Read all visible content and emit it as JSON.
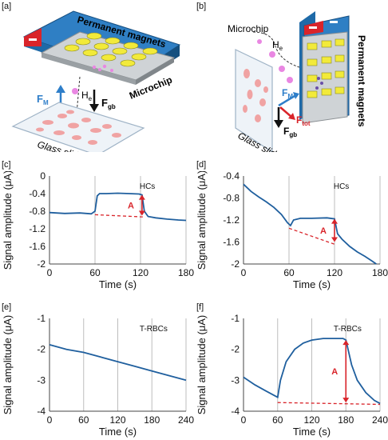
{
  "panels": {
    "a": {
      "label": "[a]",
      "magnets": "Permanent magnets",
      "microchip": "Microchip",
      "He": "H",
      "He_sub": "e",
      "FM": "F",
      "FM_sub": "M",
      "Fgb": "F",
      "Fgb_sub": "gb",
      "glass": "Glass slide",
      "colors": {
        "magnet_top": "#2f7fc4",
        "magnet_side": "#1e6aa8",
        "red": "#d9242a",
        "chip": "#cfd3d6",
        "pad": "#f2ea3a",
        "cell": "#f0a3a3",
        "pink": "#e987e2"
      }
    },
    "b": {
      "label": "[b]",
      "magnets": "Permanent magnets",
      "microchip": "Microchip",
      "He": "H",
      "He_sub": "e",
      "FM": "F",
      "FM_sub": "M",
      "Fgb": "F",
      "Fgb_sub": "gb",
      "Ftot": "F",
      "Ftot_sub": "tot",
      "glass": "Glass slide"
    }
  },
  "chart_data": [
    {
      "panel": "[c]",
      "type": "line",
      "legend": "HCs",
      "ylabel": "Signal amplitude (μA)",
      "xlabel": "Time (s)",
      "xlim": [
        0,
        180
      ],
      "ylim": [
        -2,
        0
      ],
      "xticks": [
        0,
        60,
        120,
        180
      ],
      "yticks": [
        0,
        -0.4,
        -0.8,
        -1.2,
        -1.6,
        -2
      ],
      "ytick_labels": [
        "0",
        "-0.4",
        "-0.8",
        "-1.2",
        "-1.6",
        "-2"
      ],
      "series": [
        {
          "color": "#1f5f9e",
          "x": [
            0,
            20,
            40,
            55,
            60,
            63,
            66,
            75,
            90,
            105,
            118,
            122,
            125,
            130,
            140,
            155,
            170,
            180
          ],
          "y": [
            -0.83,
            -0.85,
            -0.84,
            -0.86,
            -0.8,
            -0.45,
            -0.4,
            -0.4,
            -0.39,
            -0.4,
            -0.41,
            -0.43,
            -0.8,
            -0.92,
            -0.95,
            -0.98,
            -1.0,
            -1.01
          ]
        }
      ],
      "baseline": {
        "x": [
          60,
          123
        ],
        "y": [
          -0.88,
          -0.93
        ]
      },
      "annotation": {
        "label": "A",
        "x": 122,
        "y_from": -0.43,
        "y_to": -0.9
      }
    },
    {
      "panel": "[d]",
      "type": "line",
      "legend": "HCs",
      "ylabel": "Signal amplitude (μA)",
      "xlabel": "Time (s)",
      "xlim": [
        0,
        180
      ],
      "ylim": [
        -2,
        -0.4
      ],
      "xticks": [
        0,
        60,
        120,
        180
      ],
      "yticks": [
        -0.4,
        -0.8,
        -1.2,
        -1.6,
        -2
      ],
      "ytick_labels": [
        "-0.4",
        "-0.8",
        "-1.2",
        "-1.6",
        "-2"
      ],
      "series": [
        {
          "color": "#1f5f9e",
          "x": [
            0,
            10,
            20,
            30,
            40,
            50,
            58,
            62,
            66,
            75,
            90,
            110,
            120,
            124,
            130,
            140,
            150,
            160,
            170,
            175
          ],
          "y": [
            -0.55,
            -0.68,
            -0.78,
            -0.87,
            -0.97,
            -1.1,
            -1.25,
            -1.3,
            -1.2,
            -1.17,
            -1.17,
            -1.16,
            -1.18,
            -1.45,
            -1.55,
            -1.68,
            -1.78,
            -1.86,
            -1.95,
            -2.0
          ]
        }
      ],
      "baseline": {
        "x": [
          60,
          122
        ],
        "y": [
          -1.35,
          -1.65
        ]
      },
      "annotation": {
        "label": "A",
        "x": 120,
        "y_from": -1.18,
        "y_to": -1.6
      }
    },
    {
      "panel": "[e]",
      "type": "line",
      "legend": "T-RBCs",
      "ylabel": "Signal amplitude (μA)",
      "xlabel": "Time (s)",
      "xlim": [
        0,
        240
      ],
      "ylim": [
        -4,
        -1
      ],
      "xticks": [
        0,
        60,
        120,
        180,
        240
      ],
      "yticks": [
        -1,
        -2,
        -3,
        -4
      ],
      "ytick_labels": [
        "-1",
        "-2",
        "-3",
        "-4"
      ],
      "series": [
        {
          "color": "#1f5f9e",
          "x": [
            0,
            30,
            60,
            90,
            120,
            150,
            180,
            210,
            240
          ],
          "y": [
            -1.85,
            -2.0,
            -2.1,
            -2.25,
            -2.4,
            -2.55,
            -2.7,
            -2.85,
            -3.0
          ]
        }
      ]
    },
    {
      "panel": "[f]",
      "type": "line",
      "legend": "T-RBCs",
      "ylabel": "Signal amplitude (μA)",
      "xlabel": "Time (s)",
      "xlim": [
        0,
        240
      ],
      "ylim": [
        -4,
        -1
      ],
      "xticks": [
        0,
        60,
        120,
        180,
        240
      ],
      "yticks": [
        -1,
        -2,
        -3,
        -4
      ],
      "ytick_labels": [
        "-1",
        "-2",
        "-3",
        "-4"
      ],
      "series": [
        {
          "color": "#1f5f9e",
          "x": [
            0,
            20,
            40,
            55,
            60,
            65,
            75,
            90,
            105,
            120,
            140,
            160,
            175,
            180,
            190,
            200,
            215,
            230,
            240
          ],
          "y": [
            -2.9,
            -3.15,
            -3.35,
            -3.5,
            -3.55,
            -3.0,
            -2.4,
            -2.0,
            -1.8,
            -1.7,
            -1.65,
            -1.65,
            -1.65,
            -1.7,
            -2.5,
            -3.0,
            -3.4,
            -3.65,
            -3.75
          ]
        }
      ],
      "baseline": {
        "x": [
          60,
          240
        ],
        "y": [
          -3.72,
          -3.78
        ]
      },
      "annotation": {
        "label": "A",
        "x": 180,
        "y_from": -1.7,
        "y_to": -3.72
      }
    }
  ]
}
